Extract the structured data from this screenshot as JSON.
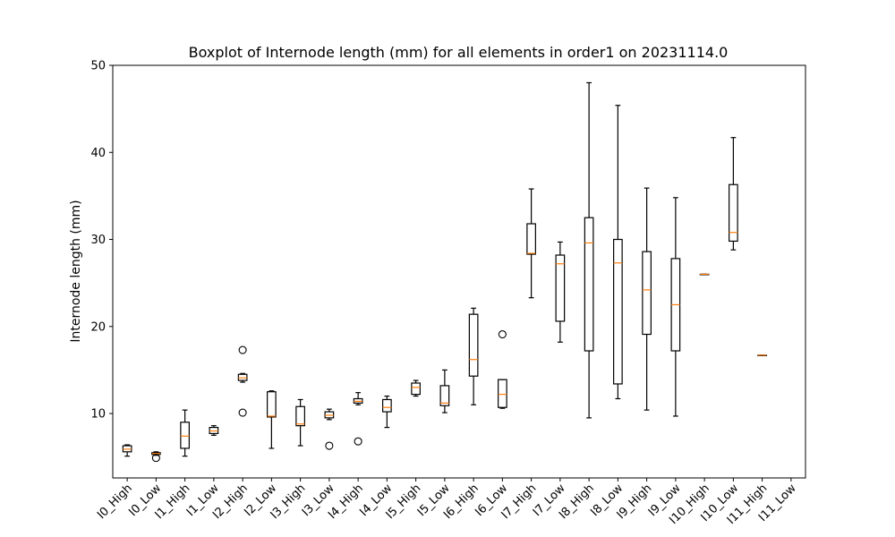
{
  "chart_data": {
    "type": "boxplot",
    "title": "Boxplot of Internode length (mm) for all elements in order1 on 20231114.0",
    "xlabel": "",
    "ylabel": "Internode length (mm)",
    "ylim": [
      2.6,
      50
    ],
    "yticks": [
      10,
      20,
      30,
      40,
      50
    ],
    "grid": false,
    "colors": {
      "box": "#000000",
      "median": "#ff7f0e",
      "flier": "#000000"
    },
    "categories": [
      "I0_High",
      "I0_Low",
      "I1_High",
      "I1_Low",
      "I2_High",
      "I2_Low",
      "I3_High",
      "I3_Low",
      "I4_High",
      "I4_Low",
      "I5_High",
      "I5_Low",
      "I6_High",
      "I6_Low",
      "I7_High",
      "I7_Low",
      "I8_High",
      "I8_Low",
      "I9_High",
      "I9_Low",
      "I10_High",
      "I10_Low",
      "I11_High",
      "I11_Low"
    ],
    "boxes": [
      {
        "whislo": 5.1,
        "q1": 5.6,
        "med": 5.9,
        "q3": 6.3,
        "whishi": 6.4,
        "fliers": []
      },
      {
        "whislo": 5.2,
        "q1": 5.3,
        "med": 5.4,
        "q3": 5.5,
        "whishi": 5.6,
        "fliers": [
          4.9
        ]
      },
      {
        "whislo": 5.1,
        "q1": 6.0,
        "med": 7.4,
        "q3": 9.0,
        "whishi": 10.4,
        "fliers": []
      },
      {
        "whislo": 7.5,
        "q1": 7.7,
        "med": 8.0,
        "q3": 8.4,
        "whishi": 8.6,
        "fliers": []
      },
      {
        "whislo": 13.6,
        "q1": 13.8,
        "med": 14.1,
        "q3": 14.5,
        "whishi": 14.6,
        "fliers": [
          17.3,
          10.1
        ]
      },
      {
        "whislo": 6.0,
        "q1": 9.6,
        "med": 9.7,
        "q3": 12.5,
        "whishi": 12.6,
        "fliers": []
      },
      {
        "whislo": 6.3,
        "q1": 8.6,
        "med": 8.8,
        "q3": 10.8,
        "whishi": 11.6,
        "fliers": []
      },
      {
        "whislo": 9.3,
        "q1": 9.5,
        "med": 9.8,
        "q3": 10.2,
        "whishi": 10.5,
        "fliers": [
          6.3
        ]
      },
      {
        "whislo": 11.0,
        "q1": 11.2,
        "med": 11.4,
        "q3": 11.7,
        "whishi": 12.4,
        "fliers": [
          6.8
        ]
      },
      {
        "whislo": 8.4,
        "q1": 10.2,
        "med": 10.7,
        "q3": 11.6,
        "whishi": 12.0,
        "fliers": []
      },
      {
        "whislo": 12.0,
        "q1": 12.2,
        "med": 13.0,
        "q3": 13.5,
        "whishi": 13.8,
        "fliers": []
      },
      {
        "whislo": 10.1,
        "q1": 10.9,
        "med": 11.2,
        "q3": 13.2,
        "whishi": 15.0,
        "fliers": []
      },
      {
        "whislo": 11.0,
        "q1": 14.3,
        "med": 16.2,
        "q3": 21.4,
        "whishi": 22.1,
        "fliers": []
      },
      {
        "whislo": 10.6,
        "q1": 10.7,
        "med": 12.2,
        "q3": 13.9,
        "whishi": 13.9,
        "fliers": [
          19.1
        ]
      },
      {
        "whislo": 23.3,
        "q1": 28.3,
        "med": 28.4,
        "q3": 31.8,
        "whishi": 35.8,
        "fliers": []
      },
      {
        "whislo": 18.2,
        "q1": 20.6,
        "med": 27.2,
        "q3": 28.2,
        "whishi": 29.7,
        "fliers": []
      },
      {
        "whislo": 9.5,
        "q1": 17.2,
        "med": 29.6,
        "q3": 32.5,
        "whishi": 48.0,
        "fliers": []
      },
      {
        "whislo": 11.7,
        "q1": 13.4,
        "med": 27.3,
        "q3": 30.0,
        "whishi": 45.4,
        "fliers": []
      },
      {
        "whislo": 10.4,
        "q1": 19.1,
        "med": 24.2,
        "q3": 28.6,
        "whishi": 35.9,
        "fliers": []
      },
      {
        "whislo": 9.7,
        "q1": 17.2,
        "med": 22.5,
        "q3": 27.8,
        "whishi": 34.8,
        "fliers": []
      },
      {
        "whislo": 26.0,
        "q1": 26.0,
        "med": 26.0,
        "q3": 26.0,
        "whishi": 26.0,
        "fliers": []
      },
      {
        "whislo": 28.8,
        "q1": 29.8,
        "med": 30.8,
        "q3": 36.3,
        "whishi": 41.7,
        "fliers": []
      },
      {
        "whislo": 16.7,
        "q1": 16.7,
        "med": 16.7,
        "q3": 16.7,
        "whishi": 16.7,
        "fliers": []
      },
      null
    ]
  }
}
